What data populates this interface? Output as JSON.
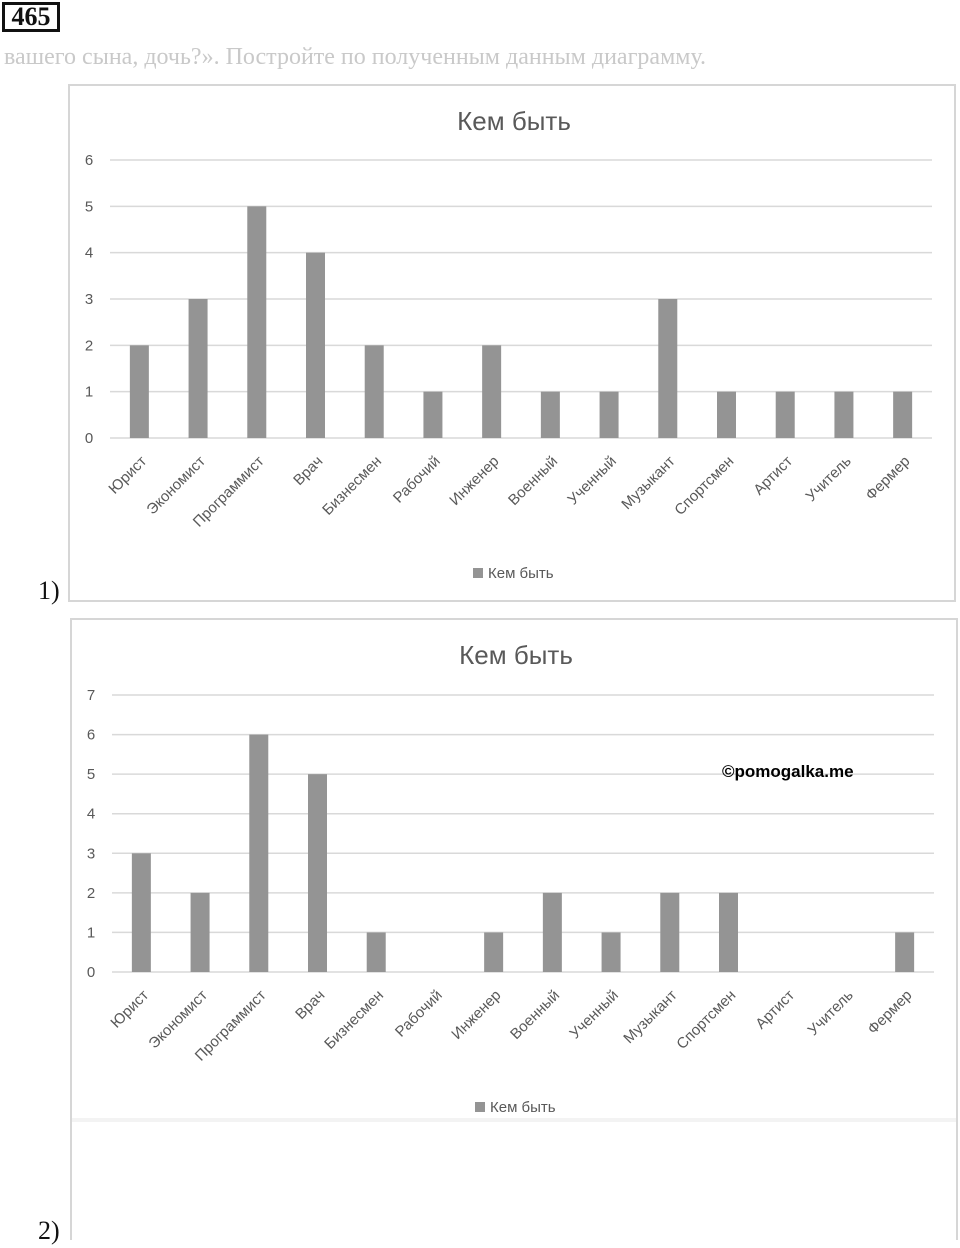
{
  "task_number": "465",
  "faded_text": "вашего сына, дочь?». Постройте по полученным данным диаграмму.",
  "labels": {
    "first": "1)",
    "second": "2)"
  },
  "watermark": "©pomogalka.me",
  "colors": {
    "bar": "#949494",
    "grid": "#d9d9d9",
    "text": "#595959",
    "frame": "#d6d6d6"
  },
  "chart_data": [
    {
      "type": "bar",
      "title": "Кем быть",
      "categories": [
        "Юрист",
        "Экономист",
        "Программист",
        "Врач",
        "Бизнесмен",
        "Рабочий",
        "Инженер",
        "Военный",
        "Ученный",
        "Музыкант",
        "Спортсмен",
        "Артист",
        "Учитель",
        "Фермер"
      ],
      "series": [
        {
          "name": "Кем быть",
          "values": [
            2,
            3,
            5,
            4,
            2,
            1,
            2,
            1,
            1,
            3,
            1,
            1,
            1,
            1
          ]
        }
      ],
      "ylim": [
        0,
        6
      ],
      "yticks": [
        0,
        1,
        2,
        3,
        4,
        5,
        6
      ],
      "grid": true,
      "legend": "bottom"
    },
    {
      "type": "bar",
      "title": "Кем быть",
      "categories": [
        "Юрист",
        "Экономист",
        "Программист",
        "Врач",
        "Бизнесмен",
        "Рабочий",
        "Инженер",
        "Военный",
        "Ученный",
        "Музыкант",
        "Спортсмен",
        "Артист",
        "Учитель",
        "Фермер"
      ],
      "series": [
        {
          "name": "Кем быть",
          "values": [
            3,
            2,
            6,
            5,
            1,
            0,
            1,
            2,
            1,
            2,
            2,
            0,
            0,
            1
          ]
        }
      ],
      "ylim": [
        0,
        7
      ],
      "yticks": [
        0,
        1,
        2,
        3,
        4,
        5,
        6,
        7
      ],
      "grid": true,
      "legend": "bottom"
    }
  ]
}
